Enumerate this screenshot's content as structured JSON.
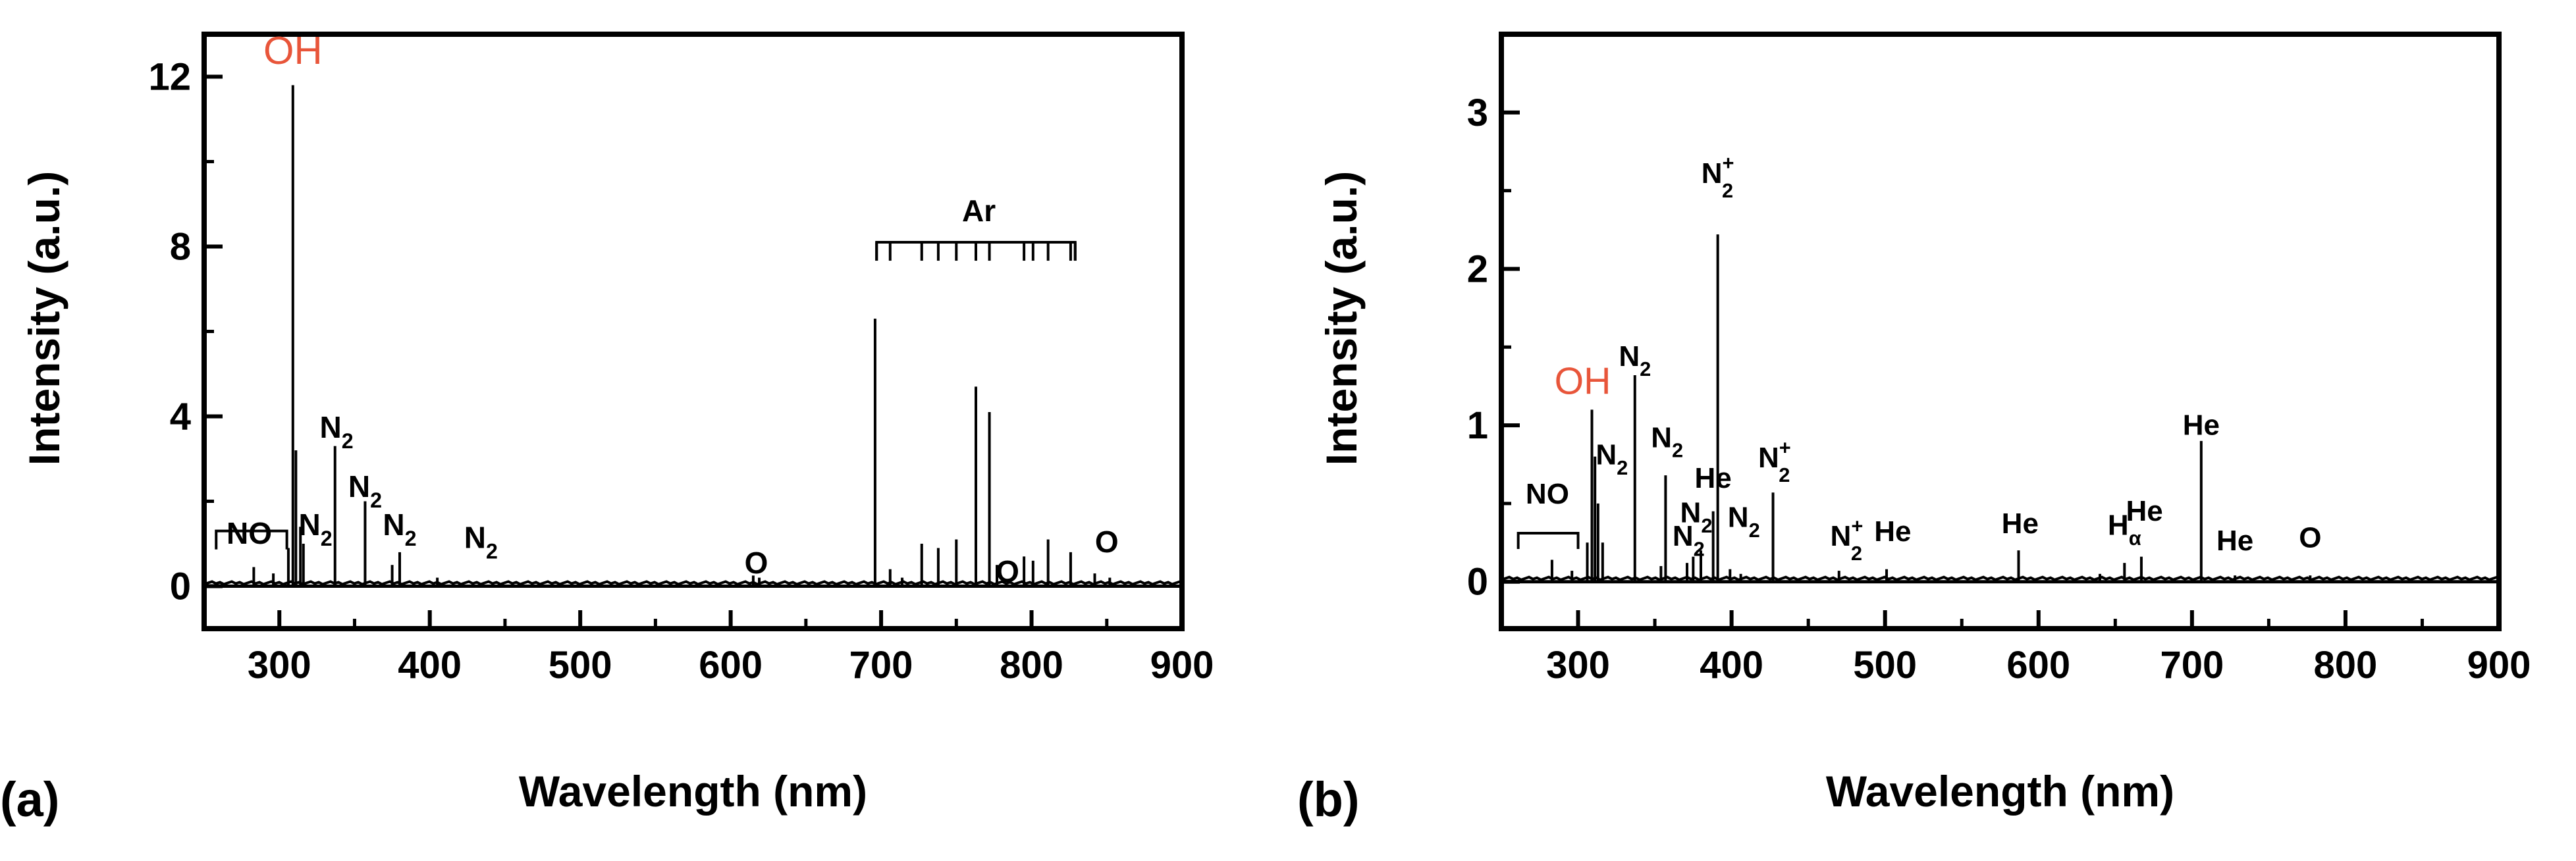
{
  "chart_data": [
    {
      "type": "line",
      "panel_label": "(a)",
      "xlabel": "Wavelength (nm)",
      "ylabel": "Intensity (a.u.)",
      "xlim": [
        250,
        900
      ],
      "ylim": [
        -1,
        13
      ],
      "x_ticks": [
        300,
        400,
        500,
        600,
        700,
        800,
        900
      ],
      "x_tick_labels": [
        "300",
        "400",
        "500",
        "600",
        "700",
        "800",
        "900"
      ],
      "y_ticks": [
        0,
        4,
        8,
        12
      ],
      "y_tick_labels": [
        "0",
        "4",
        "8",
        "12"
      ],
      "series": [
        {
          "name": "emission spectrum",
          "peaks": [
            {
              "x": 283,
              "y": 0.45
            },
            {
              "x": 296,
              "y": 0.3
            },
            {
              "x": 306,
              "y": 0.9
            },
            {
              "x": 309,
              "y": 11.8
            },
            {
              "x": 311,
              "y": 3.2
            },
            {
              "x": 314,
              "y": 1.4
            },
            {
              "x": 316,
              "y": 1.0
            },
            {
              "x": 337,
              "y": 3.3
            },
            {
              "x": 357,
              "y": 2.0
            },
            {
              "x": 375,
              "y": 0.5
            },
            {
              "x": 380,
              "y": 0.8
            },
            {
              "x": 405,
              "y": 0.2
            },
            {
              "x": 615,
              "y": 0.25
            },
            {
              "x": 619,
              "y": 0.2
            },
            {
              "x": 696,
              "y": 6.3
            },
            {
              "x": 706,
              "y": 0.4
            },
            {
              "x": 714,
              "y": 0.2
            },
            {
              "x": 727,
              "y": 1.0
            },
            {
              "x": 738,
              "y": 0.9
            },
            {
              "x": 750,
              "y": 1.1
            },
            {
              "x": 763,
              "y": 4.7
            },
            {
              "x": 772,
              "y": 4.1
            },
            {
              "x": 777,
              "y": 0.5
            },
            {
              "x": 795,
              "y": 0.7
            },
            {
              "x": 801,
              "y": 0.6
            },
            {
              "x": 811,
              "y": 1.1
            },
            {
              "x": 826,
              "y": 0.8
            },
            {
              "x": 842,
              "y": 0.3
            },
            {
              "x": 852,
              "y": 0.2
            }
          ]
        }
      ],
      "annotations": [
        {
          "text": "OH",
          "x": 309,
          "y": 12.3,
          "color": "#e8553a"
        },
        {
          "text": "NO",
          "x": 280,
          "y": 1.0
        },
        {
          "text": "N",
          "sub": "2",
          "x": 324,
          "y": 1.2
        },
        {
          "text": "N",
          "sub": "2",
          "x": 338,
          "y": 3.5
        },
        {
          "text": "N",
          "sub": "2",
          "x": 357,
          "y": 2.1
        },
        {
          "text": "N",
          "sub": "2",
          "x": 380,
          "y": 1.2
        },
        {
          "text": "N",
          "sub": "2",
          "x": 434,
          "y": 0.9
        },
        {
          "text": "O",
          "x": 617,
          "y": 0.3
        },
        {
          "text": "O",
          "x": 784,
          "y": 0.1
        },
        {
          "text": "Ar",
          "x": 765,
          "y": 8.6
        },
        {
          "text": "O",
          "x": 850,
          "y": 0.8
        }
      ],
      "brackets": [
        {
          "label": "NO",
          "x_start": 258,
          "x_end": 305,
          "y": 1.3
        },
        {
          "label": "Ar",
          "x_start": 697,
          "x_end": 829,
          "y": 8.1,
          "marks": [
            697,
            706,
            727,
            738,
            750,
            763,
            772,
            795,
            801,
            811,
            826,
            829
          ]
        }
      ]
    },
    {
      "type": "line",
      "panel_label": "(b)",
      "xlabel": "Wavelength (nm)",
      "ylabel": "Intensity (a.u.)",
      "xlim": [
        250,
        900
      ],
      "ylim": [
        -0.3,
        3.5
      ],
      "x_ticks": [
        300,
        400,
        500,
        600,
        700,
        800,
        900
      ],
      "x_tick_labels": [
        "300",
        "400",
        "500",
        "600",
        "700",
        "800",
        "900"
      ],
      "y_ticks": [
        0,
        1,
        2,
        3
      ],
      "y_tick_labels": [
        "0",
        "1",
        "2",
        "3"
      ],
      "series": [
        {
          "name": "emission spectrum",
          "peaks": [
            {
              "x": 283,
              "y": 0.14
            },
            {
              "x": 296,
              "y": 0.07
            },
            {
              "x": 306,
              "y": 0.25
            },
            {
              "x": 309,
              "y": 1.1
            },
            {
              "x": 311,
              "y": 0.8
            },
            {
              "x": 313,
              "y": 0.5
            },
            {
              "x": 316,
              "y": 0.25
            },
            {
              "x": 337,
              "y": 1.32
            },
            {
              "x": 354,
              "y": 0.1
            },
            {
              "x": 357,
              "y": 0.68
            },
            {
              "x": 371,
              "y": 0.12
            },
            {
              "x": 375,
              "y": 0.16
            },
            {
              "x": 380,
              "y": 0.2
            },
            {
              "x": 388,
              "y": 0.45
            },
            {
              "x": 391,
              "y": 2.22
            },
            {
              "x": 399,
              "y": 0.08
            },
            {
              "x": 406,
              "y": 0.05
            },
            {
              "x": 427,
              "y": 0.57
            },
            {
              "x": 470,
              "y": 0.07
            },
            {
              "x": 501,
              "y": 0.08
            },
            {
              "x": 587,
              "y": 0.2
            },
            {
              "x": 640,
              "y": 0.05
            },
            {
              "x": 656,
              "y": 0.12
            },
            {
              "x": 667,
              "y": 0.16
            },
            {
              "x": 706,
              "y": 0.9
            },
            {
              "x": 728,
              "y": 0.04
            },
            {
              "x": 777,
              "y": 0.04
            }
          ]
        }
      ],
      "annotations": [
        {
          "text": "OH",
          "x": 303,
          "y": 1.2,
          "color": "#e8553a"
        },
        {
          "text": "NO",
          "x": 280,
          "y": 0.5
        },
        {
          "text": "N",
          "sub": "2",
          "x": 322,
          "y": 0.75
        },
        {
          "text": "N",
          "sub": "2",
          "x": 337,
          "y": 1.38
        },
        {
          "text": "N",
          "sub": "2",
          "x": 358,
          "y": 0.86
        },
        {
          "text": "He",
          "x": 388,
          "y": 0.6
        },
        {
          "text": "N",
          "sub": "2",
          "x": 377,
          "y": 0.38
        },
        {
          "text": "N",
          "sub": "2",
          "x": 372,
          "y": 0.23
        },
        {
          "text": "N",
          "sub": "2",
          "x": 408,
          "y": 0.35
        },
        {
          "text": "N",
          "sub": "2",
          "sup": "+",
          "x": 391,
          "y": 2.55
        },
        {
          "text": "N",
          "sub": "2",
          "sup": "+",
          "x": 428,
          "y": 0.73
        },
        {
          "text": "N",
          "sub": "2",
          "sup": "+",
          "x": 475,
          "y": 0.23
        },
        {
          "text": "He",
          "x": 505,
          "y": 0.26
        },
        {
          "text": "He",
          "x": 588,
          "y": 0.31
        },
        {
          "text": "H",
          "sub": "α",
          "x": 656,
          "y": 0.3
        },
        {
          "text": "He",
          "x": 669,
          "y": 0.39
        },
        {
          "text": "He",
          "x": 706,
          "y": 0.94
        },
        {
          "text": "He",
          "x": 728,
          "y": 0.2
        },
        {
          "text": "O",
          "x": 777,
          "y": 0.22
        }
      ],
      "brackets": [
        {
          "label": "NO",
          "x_start": 261,
          "x_end": 300,
          "y": 0.31
        }
      ]
    }
  ]
}
